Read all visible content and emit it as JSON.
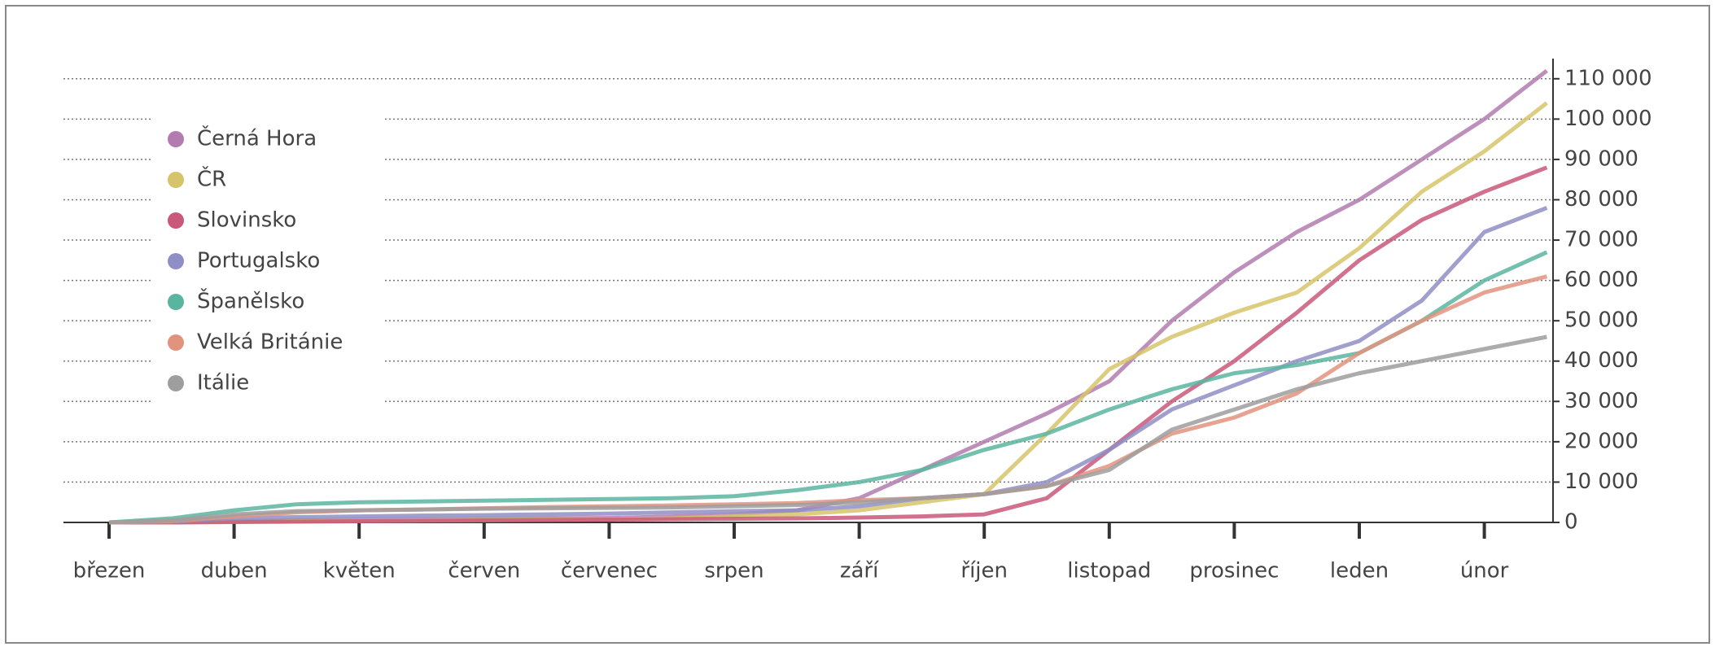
{
  "chart_data": {
    "type": "line",
    "categories": [
      "březen",
      null,
      "duben",
      null,
      "květen",
      null,
      "červen",
      null,
      "červenec",
      null,
      "srpen",
      null,
      "září",
      null,
      "říjen",
      null,
      "listopad",
      null,
      "prosinec",
      null,
      "leden",
      null,
      "únor",
      null
    ],
    "series": [
      {
        "name": "Černá Hora",
        "color": "#b27cb0",
        "values": [
          0,
          0,
          300,
          500,
          700,
          800,
          900,
          1000,
          1100,
          1500,
          2000,
          3000,
          6000,
          13000,
          20000,
          27000,
          35000,
          50000,
          62000,
          72000,
          80000,
          90000,
          100000,
          112000
        ]
      },
      {
        "name": "ČR",
        "color": "#d6c46a",
        "values": [
          0,
          0,
          200,
          300,
          400,
          500,
          600,
          700,
          800,
          1000,
          1500,
          2000,
          3000,
          5000,
          7000,
          22000,
          38000,
          46000,
          52000,
          57000,
          68000,
          82000,
          92000,
          104000
        ]
      },
      {
        "name": "Slovinsko",
        "color": "#c9587a",
        "values": [
          0,
          0,
          100,
          200,
          300,
          400,
          500,
          600,
          700,
          800,
          900,
          1000,
          1200,
          1500,
          2000,
          6000,
          18000,
          30000,
          40000,
          52000,
          65000,
          75000,
          82000,
          88000
        ]
      },
      {
        "name": "Portugalsko",
        "color": "#8f8ec6",
        "values": [
          0,
          200,
          1000,
          1300,
          1500,
          1700,
          1800,
          2000,
          2200,
          2500,
          2800,
          3000,
          4000,
          6000,
          7000,
          10000,
          18000,
          28000,
          34000,
          40000,
          45000,
          55000,
          72000,
          78000
        ]
      },
      {
        "name": "Španělsko",
        "color": "#5ab5a0",
        "values": [
          0,
          1000,
          3000,
          4500,
          5000,
          5200,
          5400,
          5600,
          5800,
          6000,
          6500,
          8000,
          10000,
          13000,
          18000,
          22000,
          28000,
          33000,
          37000,
          39000,
          42000,
          50000,
          60000,
          67000
        ]
      },
      {
        "name": "Velká Británie",
        "color": "#e2937e",
        "values": [
          0,
          300,
          1500,
          2500,
          3000,
          3200,
          3500,
          3800,
          4000,
          4200,
          4500,
          4800,
          5500,
          6000,
          7000,
          9000,
          14000,
          22000,
          26000,
          32000,
          42000,
          50000,
          57000,
          61000
        ]
      },
      {
        "name": "Itálie",
        "color": "#9e9e9e",
        "values": [
          0,
          500,
          2000,
          2800,
          3000,
          3200,
          3400,
          3500,
          3600,
          3700,
          4000,
          4300,
          5000,
          6000,
          7000,
          9000,
          13000,
          23000,
          28000,
          33000,
          37000,
          40000,
          43000,
          46000
        ]
      }
    ],
    "ylim": [
      0,
      115000
    ],
    "yticks": [
      0,
      {
        "value": 10000,
        "label": "10 000"
      },
      {
        "value": 20000,
        "label": "20 000"
      },
      {
        "value": 30000,
        "label": "30 000"
      },
      {
        "value": 40000,
        "label": "40 000"
      },
      {
        "value": 50000,
        "label": "50 000"
      },
      {
        "value": 60000,
        "label": "60 000"
      },
      {
        "value": 70000,
        "label": "70 000"
      },
      {
        "value": 80000,
        "label": "80 000"
      },
      {
        "value": 90000,
        "label": "90 000"
      },
      {
        "value": 100000,
        "label": "100 000"
      },
      {
        "value": 110000,
        "label": "110 000"
      }
    ],
    "grid": true,
    "legend": "upper left"
  }
}
